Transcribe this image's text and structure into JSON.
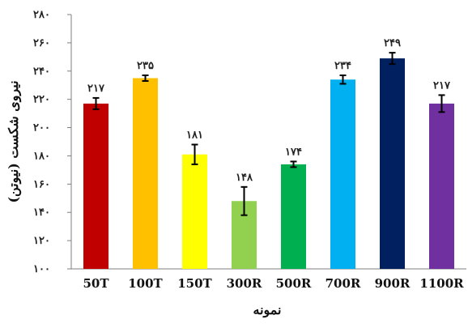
{
  "chart_data": {
    "type": "bar",
    "categories": [
      "50T",
      "100T",
      "150T",
      "300R",
      "500R",
      "700R",
      "900R",
      "1100R"
    ],
    "values": [
      217,
      235,
      181,
      148,
      174,
      234,
      249,
      217
    ],
    "value_labels": [
      "۲۱۷",
      "۲۳۵",
      "۱۸۱",
      "۱۴۸",
      "۱۷۴",
      "۲۳۴",
      "۲۴۹",
      "۲۱۷"
    ],
    "error": [
      4,
      2,
      7,
      10,
      2,
      3,
      4,
      6
    ],
    "colors": [
      "#C00000",
      "#FFC000",
      "#FFFF00",
      "#92D050",
      "#00B050",
      "#00B0F0",
      "#002060",
      "#7030A0"
    ],
    "ylim": [
      100,
      280
    ],
    "yticks": [
      100,
      120,
      140,
      160,
      180,
      200,
      220,
      240,
      260,
      280
    ],
    "ytick_labels": [
      "۱۰۰",
      "۱۲۰",
      "۱۴۰",
      "۱۶۰",
      "۱۸۰",
      "۲۰۰",
      "۲۲۰",
      "۲۴۰",
      "۲۶۰",
      "۲۸۰"
    ],
    "xlabel": "نمونه",
    "ylabel": "نیروی شکست (نیوتن)",
    "grid": false,
    "legend": "none"
  }
}
